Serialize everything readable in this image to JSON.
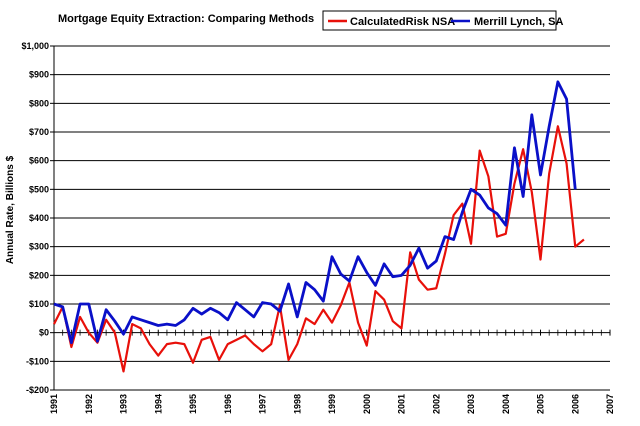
{
  "chart_data": {
    "type": "line",
    "title": "Mortgage Equity Extraction: Comparing Methods",
    "ylabel": "Annual Rate, Billions $",
    "xlabel": "",
    "ylim": [
      -200,
      1000
    ],
    "xlim": [
      1991,
      2007
    ],
    "y_ticks": [
      -200,
      -100,
      0,
      100,
      200,
      300,
      400,
      500,
      600,
      700,
      800,
      900,
      1000
    ],
    "y_tick_labels": [
      "-$200",
      "-$100",
      "$0",
      "$100",
      "$200",
      "$300",
      "$400",
      "$500",
      "$600",
      "$700",
      "$800",
      "$900",
      "$1,000"
    ],
    "x_ticks": [
      1991,
      1992,
      1993,
      1994,
      1995,
      1996,
      1997,
      1998,
      1999,
      2000,
      2001,
      2002,
      2003,
      2004,
      2005,
      2006,
      2007
    ],
    "x_tick_labels": [
      "1991",
      "1992",
      "1993",
      "1994",
      "1995",
      "1996",
      "1997",
      "1998",
      "1999",
      "2000",
      "2001",
      "2002",
      "2003",
      "2004",
      "2005",
      "2006",
      "2007"
    ],
    "grid": "horizontal",
    "legend_position": "top-right",
    "series": [
      {
        "name": "CalculatedRisk NSA",
        "color": "#e8100a",
        "points": [
          [
            1991.0,
            30
          ],
          [
            1991.25,
            90
          ],
          [
            1991.5,
            -50
          ],
          [
            1991.75,
            55
          ],
          [
            1992.0,
            0
          ],
          [
            1992.25,
            -35
          ],
          [
            1992.5,
            45
          ],
          [
            1992.75,
            0
          ],
          [
            1993.0,
            -135
          ],
          [
            1993.25,
            30
          ],
          [
            1993.5,
            15
          ],
          [
            1993.75,
            -40
          ],
          [
            1994.0,
            -80
          ],
          [
            1994.25,
            -40
          ],
          [
            1994.5,
            -35
          ],
          [
            1994.75,
            -40
          ],
          [
            1995.0,
            -105
          ],
          [
            1995.25,
            -25
          ],
          [
            1995.5,
            -15
          ],
          [
            1995.75,
            -95
          ],
          [
            1996.0,
            -40
          ],
          [
            1996.25,
            -25
          ],
          [
            1996.5,
            -10
          ],
          [
            1996.75,
            -40
          ],
          [
            1997.0,
            -65
          ],
          [
            1997.25,
            -40
          ],
          [
            1997.5,
            95
          ],
          [
            1997.75,
            -95
          ],
          [
            1998.0,
            -40
          ],
          [
            1998.25,
            50
          ],
          [
            1998.5,
            30
          ],
          [
            1998.75,
            80
          ],
          [
            1999.0,
            35
          ],
          [
            1999.25,
            95
          ],
          [
            1999.5,
            175
          ],
          [
            1999.75,
            35
          ],
          [
            2000.0,
            -45
          ],
          [
            2000.25,
            145
          ],
          [
            2000.5,
            115
          ],
          [
            2000.75,
            40
          ],
          [
            2001.0,
            15
          ],
          [
            2001.25,
            280
          ],
          [
            2001.5,
            185
          ],
          [
            2001.75,
            150
          ],
          [
            2002.0,
            155
          ],
          [
            2002.25,
            275
          ],
          [
            2002.5,
            410
          ],
          [
            2002.75,
            450
          ],
          [
            2003.0,
            310
          ],
          [
            2003.25,
            635
          ],
          [
            2003.5,
            545
          ],
          [
            2003.75,
            335
          ],
          [
            2004.0,
            345
          ],
          [
            2004.25,
            520
          ],
          [
            2004.5,
            640
          ],
          [
            2004.75,
            490
          ],
          [
            2005.0,
            255
          ],
          [
            2005.25,
            555
          ],
          [
            2005.5,
            720
          ],
          [
            2005.75,
            590
          ],
          [
            2006.0,
            300
          ],
          [
            2006.25,
            325
          ]
        ]
      },
      {
        "name": "Merrill Lynch, SA",
        "color": "#0a10c8",
        "points": [
          [
            1991.0,
            100
          ],
          [
            1991.25,
            90
          ],
          [
            1991.5,
            -35
          ],
          [
            1991.75,
            100
          ],
          [
            1992.0,
            100
          ],
          [
            1992.25,
            -30
          ],
          [
            1992.5,
            80
          ],
          [
            1992.75,
            40
          ],
          [
            1993.0,
            -5
          ],
          [
            1993.25,
            55
          ],
          [
            1993.5,
            45
          ],
          [
            1993.75,
            35
          ],
          [
            1994.0,
            25
          ],
          [
            1994.25,
            30
          ],
          [
            1994.5,
            25
          ],
          [
            1994.75,
            45
          ],
          [
            1995.0,
            85
          ],
          [
            1995.25,
            65
          ],
          [
            1995.5,
            85
          ],
          [
            1995.75,
            70
          ],
          [
            1996.0,
            45
          ],
          [
            1996.25,
            105
          ],
          [
            1996.5,
            80
          ],
          [
            1996.75,
            55
          ],
          [
            1997.0,
            105
          ],
          [
            1997.25,
            100
          ],
          [
            1997.5,
            75
          ],
          [
            1997.75,
            170
          ],
          [
            1998.0,
            55
          ],
          [
            1998.25,
            175
          ],
          [
            1998.5,
            150
          ],
          [
            1998.75,
            110
          ],
          [
            1999.0,
            265
          ],
          [
            1999.25,
            205
          ],
          [
            1999.5,
            180
          ],
          [
            1999.75,
            265
          ],
          [
            2000.0,
            210
          ],
          [
            2000.25,
            165
          ],
          [
            2000.5,
            240
          ],
          [
            2000.75,
            195
          ],
          [
            2001.0,
            200
          ],
          [
            2001.25,
            235
          ],
          [
            2001.5,
            295
          ],
          [
            2001.75,
            225
          ],
          [
            2002.0,
            250
          ],
          [
            2002.25,
            335
          ],
          [
            2002.5,
            325
          ],
          [
            2002.75,
            420
          ],
          [
            2003.0,
            500
          ],
          [
            2003.25,
            480
          ],
          [
            2003.5,
            435
          ],
          [
            2003.75,
            415
          ],
          [
            2004.0,
            375
          ],
          [
            2004.25,
            645
          ],
          [
            2004.5,
            475
          ],
          [
            2004.75,
            760
          ],
          [
            2005.0,
            550
          ],
          [
            2005.25,
            720
          ],
          [
            2005.5,
            875
          ],
          [
            2005.75,
            815
          ],
          [
            2006.0,
            500
          ]
        ]
      }
    ]
  }
}
